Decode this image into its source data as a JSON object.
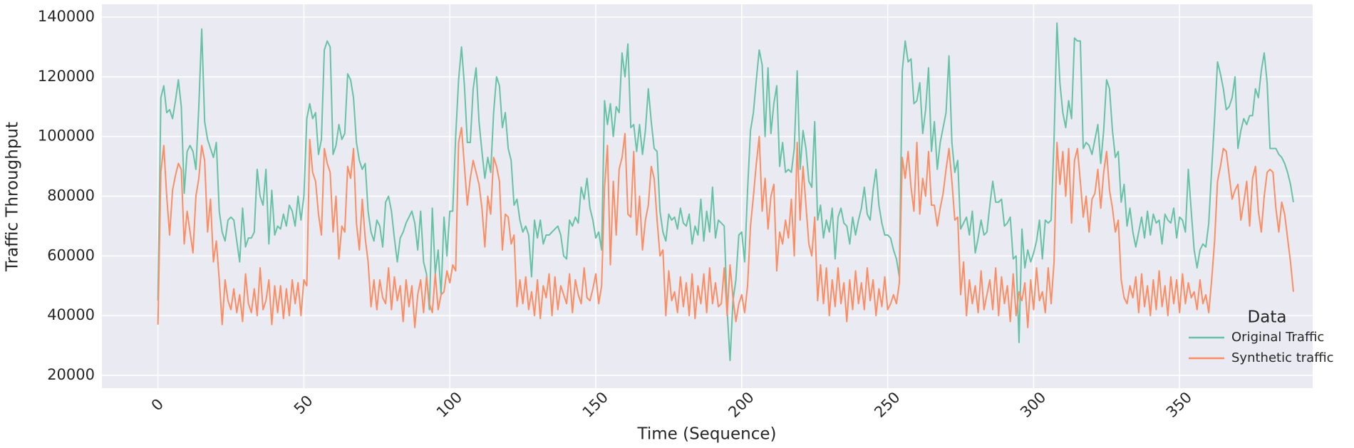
{
  "chart_data": {
    "type": "line",
    "xlabel": "Time (Sequence)",
    "ylabel": "Traffic Throughput",
    "xlim": [
      -19.2,
      395.6
    ],
    "ylim": [
      15700,
      144300
    ],
    "xticks": [
      0,
      50,
      100,
      150,
      200,
      250,
      300,
      350
    ],
    "yticks": [
      20000,
      40000,
      60000,
      80000,
      100000,
      120000,
      140000
    ],
    "grid": true,
    "legend_title": "Data",
    "legend_position": "lower right",
    "series": [
      {
        "name": "Original Traffic",
        "color": "#66c2a5",
        "values": [
          45000,
          113000,
          117000,
          108000,
          109000,
          106000,
          112000,
          119000,
          110000,
          81000,
          95000,
          97000,
          95000,
          89000,
          110000,
          136000,
          105000,
          99000,
          96000,
          93000,
          98000,
          75000,
          68000,
          65000,
          72000,
          73000,
          72000,
          65000,
          58000,
          76000,
          63000,
          66000,
          66000,
          68000,
          89000,
          80000,
          77000,
          89000,
          64000,
          82000,
          67000,
          70000,
          69000,
          74000,
          70000,
          77000,
          75000,
          70000,
          80000,
          72000,
          80000,
          106000,
          111000,
          106000,
          108000,
          94000,
          99000,
          129000,
          132000,
          130000,
          94000,
          97000,
          104000,
          99000,
          101000,
          121000,
          119000,
          113000,
          98000,
          92000,
          89000,
          91000,
          75000,
          68000,
          65000,
          72000,
          70000,
          63000,
          78000,
          80000,
          75000,
          66000,
          58000,
          66000,
          68000,
          71000,
          73000,
          75000,
          71000,
          62000,
          75000,
          58000,
          54000,
          42000,
          76000,
          54000,
          62000,
          47000,
          73000,
          60000,
          75000,
          75000,
          100000,
          119000,
          130000,
          117000,
          98000,
          98000,
          116000,
          123000,
          105000,
          95000,
          86000,
          93000,
          88000,
          108000,
          120000,
          117000,
          103000,
          108000,
          96000,
          92000,
          77000,
          79000,
          72000,
          68000,
          70000,
          67000,
          53000,
          72000,
          66000,
          72000,
          64000,
          67000,
          67000,
          68000,
          69000,
          70000,
          67000,
          60000,
          59000,
          72000,
          70000,
          73000,
          71000,
          83000,
          79000,
          86000,
          76000,
          72000,
          66000,
          68000,
          62000,
          112000,
          104000,
          111000,
          100000,
          110000,
          108000,
          128000,
          120000,
          131000,
          103000,
          104000,
          95000,
          104000,
          94000,
          102000,
          116000,
          105000,
          96000,
          95000,
          75000,
          68000,
          65000,
          74000,
          72000,
          73000,
          69000,
          76000,
          71000,
          70000,
          74000,
          64000,
          70000,
          67000,
          79000,
          65000,
          75000,
          68000,
          83000,
          66000,
          72000,
          71000,
          70000,
          42000,
          25000,
          45000,
          52000,
          67000,
          68000,
          58000,
          82000,
          102000,
          108000,
          119000,
          129000,
          124000,
          100000,
          123000,
          101000,
          111000,
          117000,
          90000,
          98000,
          88000,
          89000,
          88000,
          96000,
          122000,
          89000,
          102000,
          96000,
          85000,
          83000,
          105000,
          72000,
          77000,
          66000,
          72000,
          68000,
          76000,
          59000,
          73000,
          76000,
          71000,
          70000,
          64000,
          73000,
          67000,
          72000,
          76000,
          83000,
          74000,
          72000,
          82000,
          89000,
          77000,
          71000,
          67000,
          67000,
          66000,
          62000,
          59000,
          53000,
          122000,
          132000,
          125000,
          126000,
          111000,
          112000,
          118000,
          101000,
          109000,
          123000,
          95000,
          105000,
          89000,
          98000,
          103000,
          108000,
          127000,
          98000,
          88000,
          92000,
          69000,
          71000,
          73000,
          67000,
          75000,
          61000,
          66000,
          72000,
          67000,
          68000,
          77000,
          85000,
          78000,
          78000,
          79000,
          70000,
          71000,
          73000,
          59000,
          60000,
          31000,
          69000,
          56000,
          62000,
          58000,
          61000,
          65000,
          72000,
          59000,
          72000,
          71000,
          72000,
          99000,
          138000,
          118000,
          108000,
          103000,
          112000,
          106000,
          133000,
          132000,
          132000,
          96000,
          98000,
          97000,
          94000,
          99000,
          104000,
          91000,
          102000,
          119000,
          116000,
          102000,
          93000,
          95000,
          78000,
          84000,
          70000,
          76000,
          68000,
          63000,
          68000,
          73000,
          66000,
          75000,
          67000,
          74000,
          71000,
          72000,
          64000,
          74000,
          72000,
          71000,
          76000,
          66000,
          73000,
          72000,
          68000,
          89000,
          75000,
          62000,
          56000,
          62000,
          64000,
          63000,
          71000,
          89000,
          106000,
          125000,
          121000,
          116000,
          109000,
          110000,
          113000,
          120000,
          96000,
          102000,
          106000,
          104000,
          107000,
          107000,
          116000,
          113000,
          122000,
          128000,
          118000,
          96000,
          96000,
          96000,
          94000,
          93000,
          91000,
          88000,
          84000,
          78000
        ]
      },
      {
        "name": "Synthetic traffic",
        "color": "#fc8d62",
        "values": [
          37000,
          88000,
          97000,
          80000,
          67000,
          82000,
          87000,
          91000,
          89000,
          64000,
          75000,
          68000,
          61000,
          80000,
          86000,
          97000,
          92000,
          68000,
          79000,
          58000,
          65000,
          52000,
          37000,
          52000,
          45000,
          42000,
          49000,
          41000,
          47000,
          38000,
          54000,
          44000,
          41000,
          49000,
          40000,
          56000,
          42000,
          45000,
          52000,
          37000,
          50000,
          41000,
          50000,
          39000,
          49000,
          40000,
          52000,
          44000,
          51000,
          40000,
          52000,
          50000,
          99000,
          88000,
          85000,
          74000,
          67000,
          96000,
          91000,
          88000,
          68000,
          80000,
          59000,
          70000,
          68000,
          90000,
          86000,
          96000,
          71000,
          62000,
          79000,
          66000,
          58000,
          43000,
          52000,
          42000,
          52000,
          46000,
          44000,
          56000,
          42000,
          53000,
          45000,
          50000,
          38000,
          52000,
          43000,
          50000,
          36000,
          47000,
          52000,
          41000,
          53000,
          44000,
          41000,
          54000,
          42000,
          47000,
          48000,
          55000,
          51000,
          57000,
          55000,
          98000,
          103000,
          90000,
          77000,
          86000,
          92000,
          88000,
          84000,
          76000,
          63000,
          80000,
          74000,
          93000,
          90000,
          85000,
          62000,
          74000,
          73000,
          64000,
          67000,
          43000,
          52000,
          44000,
          53000,
          42000,
          48000,
          40000,
          52000,
          39000,
          50000,
          46000,
          54000,
          40000,
          53000,
          42000,
          50000,
          47000,
          44000,
          54000,
          41000,
          52000,
          47000,
          44000,
          56000,
          46000,
          45000,
          49000,
          54000,
          44000,
          50000,
          83000,
          97000,
          57000,
          85000,
          67000,
          89000,
          93000,
          101000,
          74000,
          73000,
          95000,
          67000,
          80000,
          62000,
          72000,
          77000,
          90000,
          86000,
          72000,
          60000,
          62000,
          40000,
          55000,
          45000,
          48000,
          41000,
          53000,
          43000,
          51000,
          40000,
          54000,
          39000,
          50000,
          44000,
          54000,
          41000,
          56000,
          44000,
          51000,
          43000,
          44000,
          56000,
          40000,
          57000,
          46000,
          38000,
          44000,
          47000,
          41000,
          50000,
          70000,
          80000,
          91000,
          100000,
          75000,
          86000,
          69000,
          80000,
          84000,
          55000,
          68000,
          64000,
          72000,
          66000,
          79000,
          60000,
          98000,
          72000,
          90000,
          77000,
          64000,
          60000,
          73000,
          45000,
          57000,
          44000,
          56000,
          40000,
          52000,
          43000,
          56000,
          44000,
          51000,
          38000,
          52000,
          42000,
          55000,
          44000,
          51000,
          42000,
          56000,
          45000,
          52000,
          40000,
          49000,
          43000,
          53000,
          42000,
          44000,
          47000,
          44000,
          51000,
          93000,
          86000,
          95000,
          83000,
          75000,
          98000,
          74000,
          86000,
          80000,
          95000,
          77000,
          77000,
          70000,
          76000,
          81000,
          89000,
          96000,
          85000,
          72000,
          73000,
          47000,
          58000,
          40000,
          52000,
          44000,
          50000,
          41000,
          55000,
          42000,
          47000,
          52000,
          42000,
          56000,
          40000,
          53000,
          44000,
          50000,
          38000,
          54000,
          40000,
          48000,
          45000,
          51000,
          36000,
          52000,
          42000,
          56000,
          45000,
          48000,
          41000,
          56000,
          44000,
          58000,
          98000,
          84000,
          95000,
          80000,
          96000,
          71000,
          92000,
          96000,
          85000,
          73000,
          80000,
          68000,
          79000,
          81000,
          89000,
          76000,
          88000,
          95000,
          82000,
          76000,
          68000,
          72000,
          52000,
          46000,
          44000,
          50000,
          46000,
          53000,
          41000,
          54000,
          43000,
          50000,
          40000,
          52000,
          42000,
          55000,
          43000,
          50000,
          40000,
          53000,
          44000,
          52000,
          41000,
          54000,
          44000,
          51000,
          46000,
          48000,
          42000,
          52000,
          44000,
          47000,
          41000,
          52000,
          65000,
          85000,
          90000,
          96000,
          95000,
          87000,
          79000,
          82000,
          84000,
          72000,
          78000,
          85000,
          70000,
          86000,
          90000,
          75000,
          68000,
          80000,
          88000,
          89000,
          88000,
          76000,
          68000,
          78000,
          74000,
          66000,
          58000,
          48000
        ]
      }
    ]
  }
}
